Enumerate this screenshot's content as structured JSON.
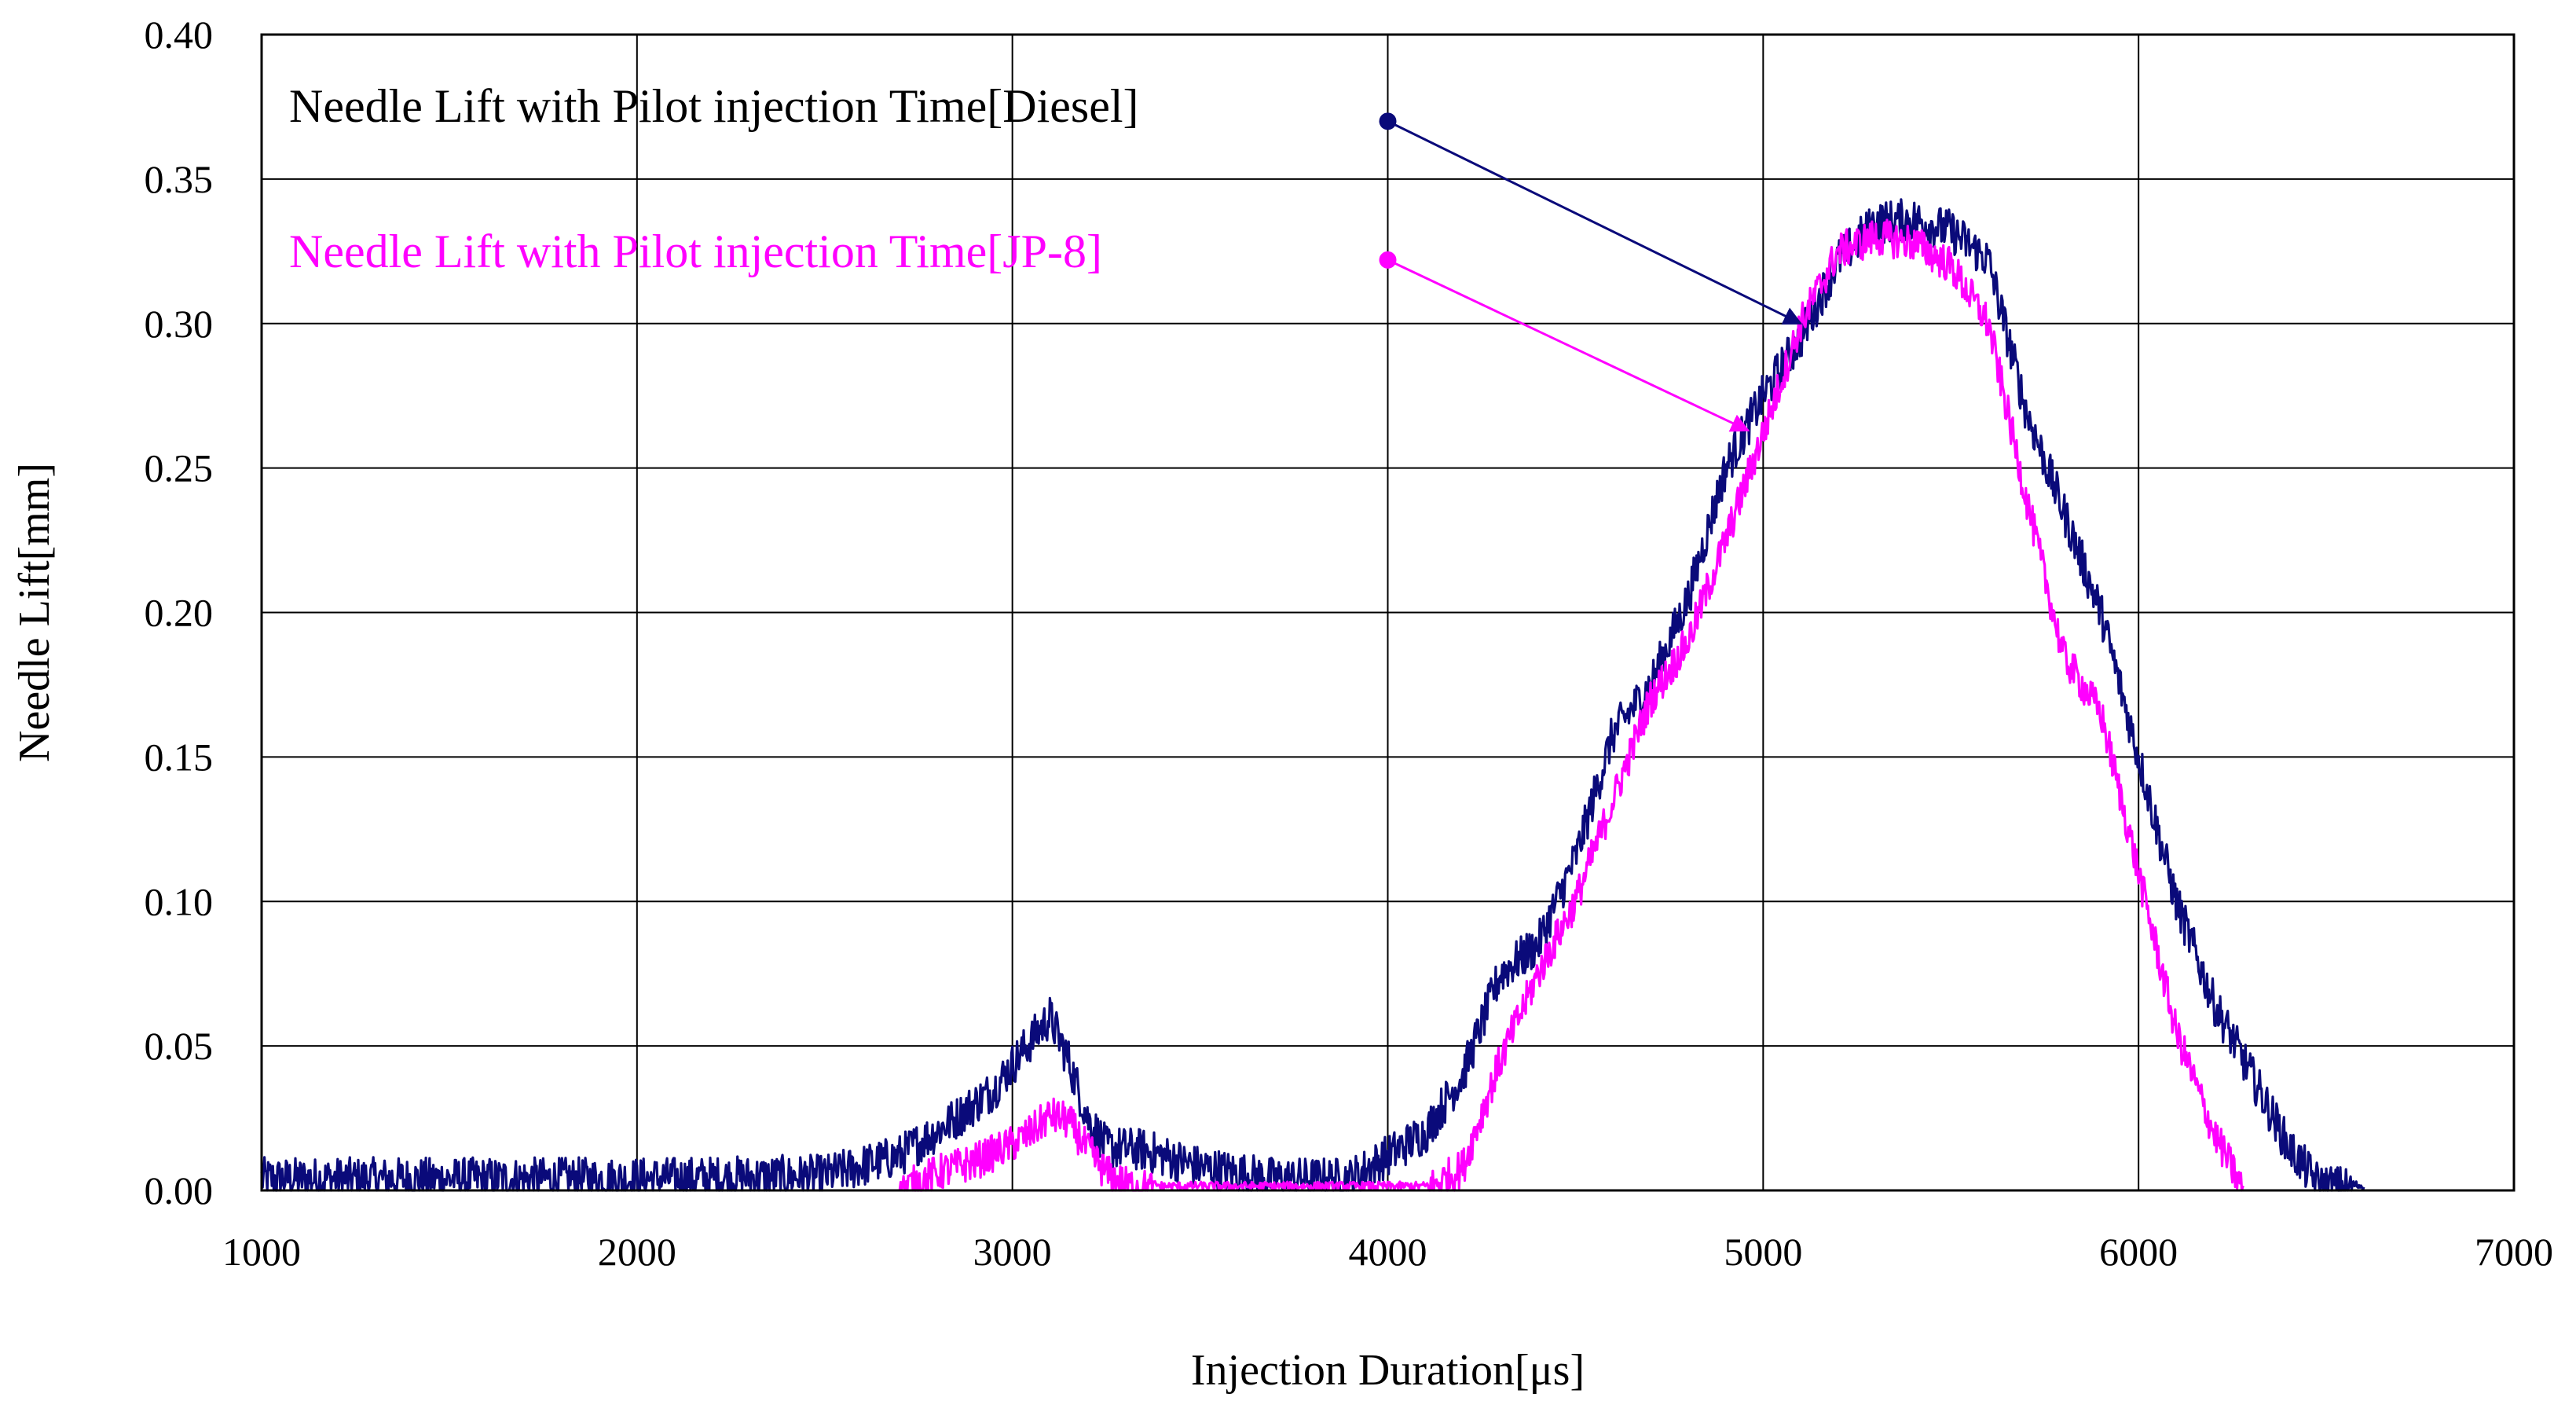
{
  "chart_data": {
    "type": "line",
    "title": "",
    "xlabel": "Injection Duration[μs]",
    "ylabel": "Needle Lift[mm]",
    "xlim": [
      1000,
      7000
    ],
    "ylim": [
      0,
      0.4
    ],
    "x_ticks": [
      1000,
      2000,
      3000,
      4000,
      5000,
      6000,
      7000
    ],
    "y_ticks": [
      0.0,
      0.05,
      0.1,
      0.15,
      0.2,
      0.25,
      0.3,
      0.35,
      0.4
    ],
    "x_tick_labels": [
      "1000",
      "2000",
      "3000",
      "4000",
      "5000",
      "6000",
      "7000"
    ],
    "y_tick_labels": [
      "0.00",
      "0.05",
      "0.10",
      "0.15",
      "0.20",
      "0.25",
      "0.30",
      "0.35",
      "0.40"
    ],
    "grid": true,
    "series": [
      {
        "name": "Needle Lift with Pilot injection Time[Diesel]",
        "color": "#0a0a7a",
        "x": [
          1000,
          2000,
          2500,
          2700,
          2850,
          2950,
          3050,
          3100,
          3150,
          3200,
          3250,
          3350,
          3500,
          3700,
          3900,
          4000,
          4100,
          4200,
          4300,
          4400,
          4500,
          4600,
          4700,
          4800,
          4900,
          5000,
          5100,
          5200,
          5300,
          5400,
          5500,
          5600,
          5700,
          5800,
          5900,
          6000,
          6100,
          6200,
          6300,
          6400,
          6480,
          6600
        ],
        "y": [
          0.004,
          0.004,
          0.005,
          0.012,
          0.025,
          0.035,
          0.052,
          0.06,
          0.045,
          0.025,
          0.015,
          0.014,
          0.008,
          0.004,
          0.004,
          0.012,
          0.02,
          0.04,
          0.075,
          0.085,
          0.115,
          0.158,
          0.175,
          0.205,
          0.25,
          0.275,
          0.295,
          0.322,
          0.335,
          0.336,
          0.332,
          0.322,
          0.27,
          0.235,
          0.2,
          0.15,
          0.1,
          0.065,
          0.04,
          0.015,
          0.002,
          0.0
        ]
      },
      {
        "name": "Needle Lift with Pilot injection Time[JP-8]",
        "color": "#ff00ff",
        "x": [
          2700,
          2800,
          2900,
          3000,
          3050,
          3100,
          3150,
          3200,
          3250,
          3300,
          3400,
          4100,
          4200,
          4300,
          4400,
          4500,
          4600,
          4700,
          4800,
          4900,
          5000,
          5100,
          5200,
          5300,
          5400,
          5500,
          5600,
          5700,
          5800,
          5850,
          5900,
          6000,
          6100,
          6200,
          6280
        ],
        "y": [
          0.0,
          0.006,
          0.01,
          0.016,
          0.02,
          0.026,
          0.024,
          0.014,
          0.006,
          0.002,
          0.0,
          0.0,
          0.008,
          0.045,
          0.075,
          0.1,
          0.135,
          0.17,
          0.19,
          0.225,
          0.262,
          0.3,
          0.325,
          0.33,
          0.328,
          0.32,
          0.3,
          0.24,
          0.185,
          0.175,
          0.165,
          0.11,
          0.055,
          0.02,
          0.0
        ]
      }
    ],
    "annotations": [
      {
        "text": "Needle Lift with Pilot injection Time[Diesel]",
        "series": 0,
        "start": [
          4000,
          0.37
        ],
        "end": [
          5100,
          0.3
        ]
      },
      {
        "text": "Needle Lift with Pilot injection Time[JP-8]",
        "series": 1,
        "start": [
          4000,
          0.322
        ],
        "end": [
          4960,
          0.263
        ]
      }
    ]
  }
}
